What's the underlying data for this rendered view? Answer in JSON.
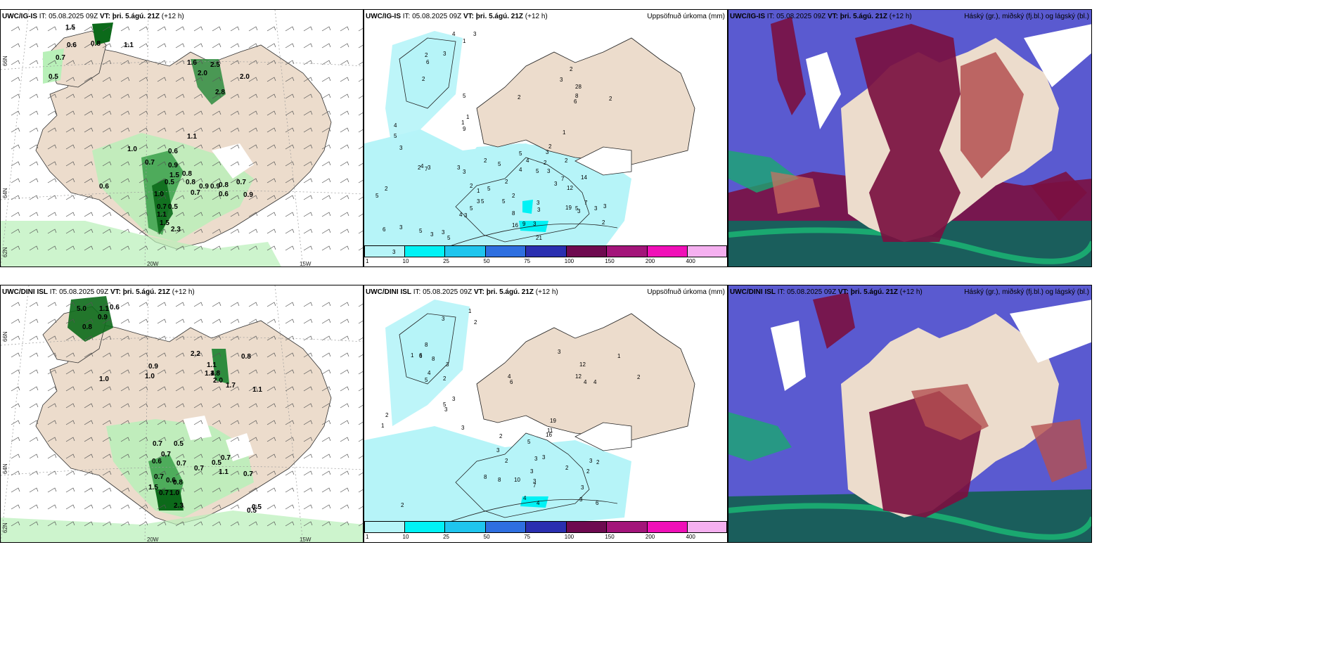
{
  "rows": [
    {
      "model": "UWC/IG-IS",
      "panels": {
        "wind": {
          "model": "UWC/IG-IS",
          "it_label": "IT:",
          "it_value": "05.08.2025 09Z",
          "vt_label": "VT:",
          "vt_value": "þri. 5.ágú. 21Z",
          "lead": "(+12 h)"
        },
        "precip": {
          "model": "UWC/IG-IS",
          "it_label": "IT:",
          "it_value": "05.08.2025 09Z",
          "vt_label": "VT:",
          "vt_value": "þri. 5.ágú. 21Z",
          "lead": "(+12 h)",
          "right_title": "Uppsöfnuð úrkoma (mm)"
        },
        "cloud": {
          "model": "UWC/IG-IS",
          "it_label": "IT:",
          "it_value": "05.08.2025 09Z",
          "vt_label": "VT:",
          "vt_value": "þri. 5.ágú. 21Z",
          "lead": "(+12 h)",
          "right_title": "Háský (gr.), miðský (fj.bl.) og lágský (bl.)"
        }
      },
      "wind_labels": [
        "1.5",
        "0.8",
        "1.1",
        "0.6",
        "0.7",
        "0.5",
        "1.6",
        "2.0",
        "2.5",
        "2.0",
        "2.8",
        "1.1",
        "1.0",
        "0.6",
        "0.7",
        "0.9",
        "1.5",
        "0.8",
        "0.5",
        "0.8",
        "0.9",
        "0.9",
        "0.8",
        "0.7",
        "0.6",
        "0.6",
        "1.0",
        "0.7",
        "1.1",
        "1.5",
        "2.3",
        "0.5",
        "0.7",
        "0.9"
      ],
      "precip_labels": [
        "3",
        "4",
        "1",
        "3",
        "2",
        "6",
        "2",
        "5",
        "4",
        "5",
        "3",
        "2",
        "4",
        "7",
        "3",
        "2",
        "5",
        "1",
        "1",
        "9",
        "2",
        "2",
        "3",
        "28",
        "8",
        "6",
        "2",
        "1",
        "5",
        "5",
        "4",
        "3",
        "2",
        "2",
        "2",
        "3",
        "5",
        "4",
        "3",
        "2",
        "3",
        "2",
        "1",
        "2",
        "2",
        "5",
        "8",
        "9",
        "3",
        "3",
        "3",
        "3",
        "7",
        "12",
        "14",
        "16",
        "21",
        "19",
        "5",
        "7",
        "3",
        "3",
        "3",
        "2",
        "3",
        "5",
        "5",
        "5",
        "3",
        "4",
        "6",
        "3",
        "5",
        "3",
        "3",
        "5",
        "3"
      ]
    },
    {
      "model": "UWC/DINI ISL",
      "panels": {
        "wind": {
          "model": "UWC/DINI ISL",
          "it_label": "IT:",
          "it_value": "05.08.2025 09Z",
          "vt_label": "VT:",
          "vt_value": "þri. 5.ágú. 21Z",
          "lead": "(+12 h)"
        },
        "precip": {
          "model": "UWC/DINI ISL",
          "it_label": "IT:",
          "it_value": "05.08.2025 09Z",
          "vt_label": "VT:",
          "vt_value": "þri. 5.ágú. 21Z",
          "lead": "(+12 h)",
          "right_title": "Uppsöfnuð úrkoma (mm)"
        },
        "cloud": {
          "model": "UWC/DINI ISL",
          "it_label": "IT:",
          "it_value": "05.08.2025 09Z",
          "vt_label": "VT:",
          "vt_value": "þri. 5.ágú. 21Z",
          "lead": "(+12 h)",
          "right_title": "Háský (gr.), miðský (fj.bl.) og lágský (bl.)"
        }
      },
      "wind_labels": [
        "5.0",
        "1.1",
        "0.6",
        "0.9",
        "0.8",
        "2.2",
        "0.9",
        "1.0",
        "1.0",
        "1.4",
        "1.1",
        "0.8",
        "1.8",
        "2.0",
        "1.7",
        "1.1",
        "0.7",
        "0.5",
        "0.7",
        "0.6",
        "0.7",
        "0.7",
        "0.5",
        "1.1",
        "0.7",
        "0.6",
        "0.8",
        "0.7",
        "1.5",
        "0.7",
        "1.0",
        "2.3",
        "0.5",
        "0.5",
        "0.7"
      ],
      "precip_labels": [
        "1",
        "2",
        "3",
        "8",
        "6",
        "8",
        "3",
        "4",
        "5",
        "6",
        "2",
        "1",
        "4",
        "6",
        "1",
        "2",
        "12",
        "12",
        "4",
        "4",
        "1",
        "2",
        "3",
        "3",
        "5",
        "3",
        "3",
        "2",
        "3",
        "2",
        "3",
        "3",
        "7",
        "10",
        "8",
        "8",
        "5",
        "11",
        "19",
        "16",
        "3",
        "3",
        "2",
        "3",
        "2",
        "2",
        "3",
        "4",
        "4",
        "3",
        "6",
        "2"
      ]
    }
  ],
  "colorbar": {
    "ticks": [
      "1",
      "10",
      "25",
      "50",
      "75",
      "100",
      "150",
      "200",
      "400"
    ],
    "colors": [
      "#b6f4f8",
      "#00f2f5",
      "#1fc5ee",
      "#2e6fe0",
      "#2a2fb0",
      "#6e0a50",
      "#a3157a",
      "#f010b8",
      "#f5b0f0"
    ]
  },
  "coords": {
    "lon_labels": [
      "20W",
      "15W"
    ],
    "lat_labels": [
      "66N",
      "64N",
      "62N"
    ]
  },
  "colors": {
    "land": "#ecdccc",
    "precip_light": "#b6f4f8",
    "precip_green_light": "#b8f0b8",
    "precip_green_dark": "#0c6a1a",
    "cloud_high": "#7a1040",
    "cloud_mid": "#5a5ad0",
    "cloud_low": "#1aa870",
    "cloud_sea": "#1a5e5c"
  }
}
